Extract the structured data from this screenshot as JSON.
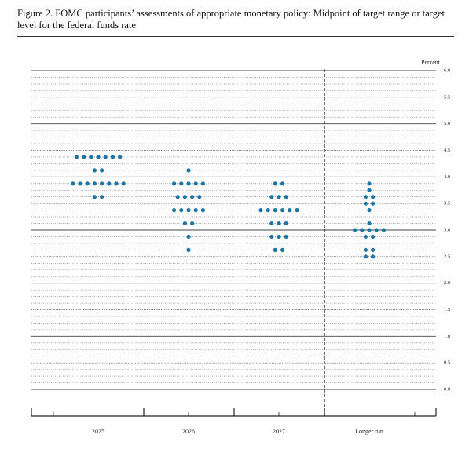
{
  "chart_data": {
    "type": "dot",
    "title": "Figure 2.  FOMC participants’ assessments of appropriate monetary policy: Midpoint of target range or target level for the federal funds rate",
    "y_axis_label": "Percent",
    "color": "#1f74a6",
    "ylim": [
      0,
      6
    ],
    "yticks": [
      {
        "value": 0,
        "label": "0.0"
      },
      0.5,
      {
        "value": 1,
        "label": "1.0"
      },
      1.5,
      {
        "value": 2,
        "label": "2.0"
      },
      2.5,
      {
        "value": 3,
        "label": "3.0"
      },
      3.5,
      {
        "value": 4,
        "label": "4.0"
      },
      4.5,
      {
        "value": 5,
        "label": "5.0"
      },
      5.5,
      {
        "value": 6,
        "label": "6.0"
      }
    ],
    "categories": [
      "2025",
      "2026",
      "2027",
      "Longer run"
    ],
    "dots": [
      [
        {
          "value": 4.375,
          "count": 7
        },
        {
          "value": 4.125,
          "count": 2
        },
        {
          "value": 3.875,
          "count": 8
        },
        {
          "value": 3.625,
          "count": 2
        }
      ],
      [
        {
          "value": 4.125,
          "count": 1
        },
        {
          "value": 3.875,
          "count": 5
        },
        {
          "value": 3.625,
          "count": 4
        },
        {
          "value": 3.375,
          "count": 5
        },
        {
          "value": 3.125,
          "count": 2
        },
        {
          "value": 2.875,
          "count": 1
        },
        {
          "value": 2.625,
          "count": 1
        }
      ],
      [
        {
          "value": 3.875,
          "count": 2
        },
        {
          "value": 3.625,
          "count": 3
        },
        {
          "value": 3.375,
          "count": 6
        },
        {
          "value": 3.125,
          "count": 3
        },
        {
          "value": 2.875,
          "count": 3
        },
        {
          "value": 2.625,
          "count": 2
        }
      ],
      [
        {
          "value": 3.875,
          "count": 1
        },
        {
          "value": 3.75,
          "count": 1
        },
        {
          "value": 3.625,
          "count": 2
        },
        {
          "value": 3.5,
          "count": 2
        },
        {
          "value": 3.375,
          "count": 1
        },
        {
          "value": 3.125,
          "count": 1
        },
        {
          "value": 3,
          "count": 5
        },
        {
          "value": 2.875,
          "count": 2
        },
        {
          "value": 2.625,
          "count": 2
        },
        {
          "value": 2.5,
          "count": 2
        }
      ]
    ]
  }
}
